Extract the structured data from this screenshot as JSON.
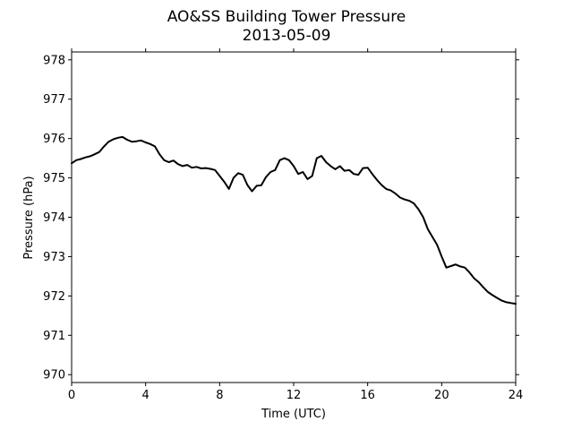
{
  "chart_data": {
    "type": "line",
    "title": "AO&SS Building Tower Pressure",
    "subtitle": "2013-05-09",
    "xlabel": "Time (UTC)",
    "ylabel": "Pressure (hPa)",
    "xlim": [
      0,
      24
    ],
    "ylim": [
      969.8,
      978.2
    ],
    "xticks": [
      0,
      4,
      8,
      12,
      16,
      20,
      24
    ],
    "yticks": [
      970,
      971,
      972,
      973,
      974,
      975,
      976,
      977,
      978
    ],
    "grid": false,
    "series": [
      {
        "color": "#000000",
        "x": [
          0,
          0.25,
          0.5,
          0.75,
          1.0,
          1.25,
          1.5,
          1.75,
          2.0,
          2.25,
          2.5,
          2.75,
          3.0,
          3.25,
          3.5,
          3.75,
          4.0,
          4.25,
          4.5,
          4.75,
          5.0,
          5.25,
          5.5,
          5.75,
          6.0,
          6.25,
          6.5,
          6.75,
          7.0,
          7.25,
          7.5,
          7.75,
          8.0,
          8.25,
          8.5,
          8.75,
          9.0,
          9.25,
          9.5,
          9.75,
          10.0,
          10.25,
          10.5,
          10.75,
          11.0,
          11.25,
          11.5,
          11.75,
          12.0,
          12.25,
          12.5,
          12.75,
          13.0,
          13.25,
          13.5,
          13.75,
          14.0,
          14.25,
          14.5,
          14.75,
          15.0,
          15.25,
          15.5,
          15.75,
          16.0,
          16.25,
          16.5,
          16.75,
          17.0,
          17.25,
          17.5,
          17.75,
          18.0,
          18.25,
          18.5,
          18.75,
          19.0,
          19.25,
          19.5,
          19.75,
          20.0,
          20.25,
          20.5,
          20.75,
          21.0,
          21.25,
          21.5,
          21.75,
          22.0,
          22.25,
          22.5,
          22.75,
          23.0,
          23.25,
          23.5,
          23.75,
          24.0
        ],
        "y": [
          975.37,
          975.45,
          975.48,
          975.52,
          975.55,
          975.6,
          975.66,
          975.8,
          975.92,
          975.98,
          976.02,
          976.04,
          975.97,
          975.92,
          975.93,
          975.95,
          975.9,
          975.86,
          975.8,
          975.6,
          975.45,
          975.4,
          975.44,
          975.35,
          975.3,
          975.33,
          975.26,
          975.28,
          975.24,
          975.25,
          975.23,
          975.2,
          975.05,
          974.9,
          974.72,
          975.0,
          975.12,
          975.08,
          974.82,
          974.66,
          974.8,
          974.81,
          975.02,
          975.15,
          975.2,
          975.45,
          975.5,
          975.45,
          975.3,
          975.1,
          975.15,
          974.97,
          975.05,
          975.5,
          975.56,
          975.4,
          975.3,
          975.22,
          975.3,
          975.18,
          975.2,
          975.1,
          975.08,
          975.25,
          975.26,
          975.1,
          974.95,
          974.82,
          974.72,
          974.68,
          974.6,
          974.5,
          974.45,
          974.42,
          974.35,
          974.2,
          974.0,
          973.7,
          973.5,
          973.3,
          973.0,
          972.72,
          972.76,
          972.8,
          972.75,
          972.72,
          972.6,
          972.45,
          972.35,
          972.22,
          972.1,
          972.02,
          971.95,
          971.88,
          971.84,
          971.82,
          971.8
        ]
      }
    ]
  }
}
